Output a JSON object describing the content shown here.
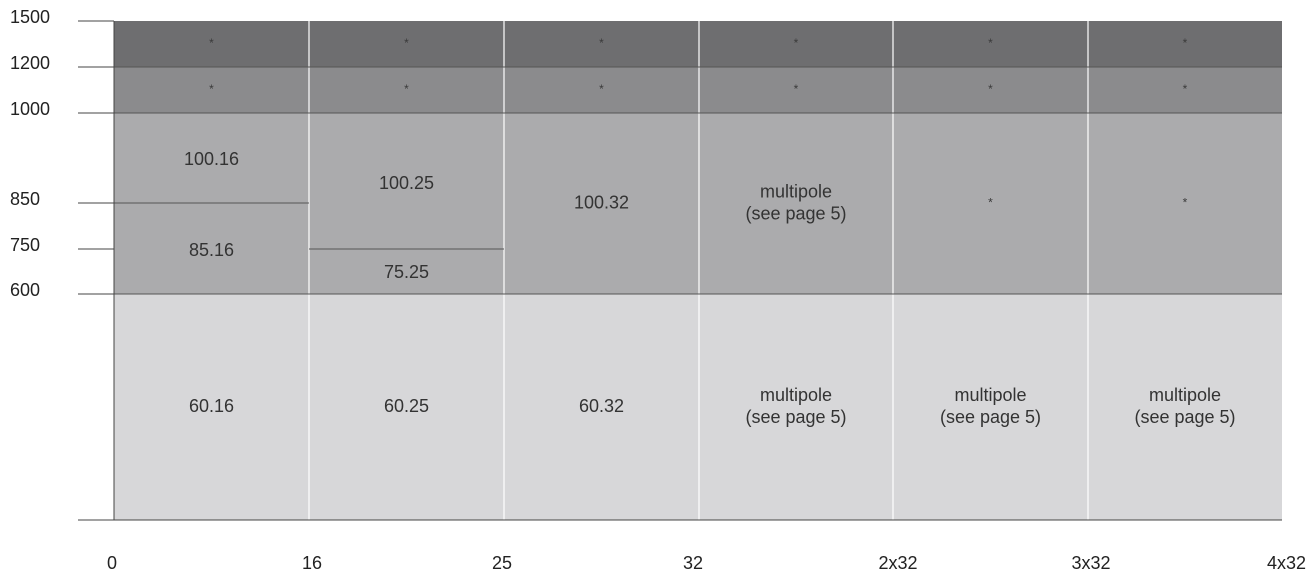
{
  "chart_data": {
    "type": "table",
    "title": "",
    "xlabel": "",
    "ylabel": "",
    "y_ticks": [
      "1500",
      "1200",
      "1000",
      "850",
      "750",
      "600"
    ],
    "x_ticks": [
      "0",
      "16",
      "25",
      "32",
      "2x32",
      "3x32",
      "4x32"
    ],
    "bands": [
      {
        "from": 1200,
        "to": 1500,
        "color": "#6e6e70"
      },
      {
        "from": 1000,
        "to": 1200,
        "color": "#8b8b8d"
      },
      {
        "from": 600,
        "to": 1000,
        "color": "#ababad"
      },
      {
        "from": 0,
        "to": 600,
        "color": "#d7d7d9"
      }
    ],
    "columns": [
      {
        "from": "0",
        "to": "16",
        "cells": [
          {
            "from": 1200,
            "to": 1500,
            "label": "*"
          },
          {
            "from": 1000,
            "to": 1200,
            "label": "*"
          },
          {
            "from": 850,
            "to": 1000,
            "label": "100.16"
          },
          {
            "from": 600,
            "to": 850,
            "label": "85.16"
          },
          {
            "from": 0,
            "to": 600,
            "label": "60.16"
          }
        ]
      },
      {
        "from": "16",
        "to": "25",
        "cells": [
          {
            "from": 1200,
            "to": 1500,
            "label": "*"
          },
          {
            "from": 1000,
            "to": 1200,
            "label": "*"
          },
          {
            "from": 750,
            "to": 1000,
            "label": "100.25"
          },
          {
            "from": 600,
            "to": 750,
            "label": "75.25"
          },
          {
            "from": 0,
            "to": 600,
            "label": "60.25"
          }
        ]
      },
      {
        "from": "25",
        "to": "32",
        "cells": [
          {
            "from": 1200,
            "to": 1500,
            "label": "*"
          },
          {
            "from": 1000,
            "to": 1200,
            "label": "*"
          },
          {
            "from": 600,
            "to": 1000,
            "label": "100.32"
          },
          {
            "from": 0,
            "to": 600,
            "label": "60.32"
          }
        ]
      },
      {
        "from": "32",
        "to": "2x32",
        "cells": [
          {
            "from": 1200,
            "to": 1500,
            "label": "*"
          },
          {
            "from": 1000,
            "to": 1200,
            "label": "*"
          },
          {
            "from": 600,
            "to": 1000,
            "label": "multipole\n(see page 5)"
          },
          {
            "from": 0,
            "to": 600,
            "label": "multipole\n(see page 5)"
          }
        ]
      },
      {
        "from": "2x32",
        "to": "3x32",
        "cells": [
          {
            "from": 1200,
            "to": 1500,
            "label": "*"
          },
          {
            "from": 1000,
            "to": 1200,
            "label": "*"
          },
          {
            "from": 600,
            "to": 1000,
            "label": "*"
          },
          {
            "from": 0,
            "to": 600,
            "label": "multipole\n(see page 5)"
          }
        ]
      },
      {
        "from": "3x32",
        "to": "4x32",
        "cells": [
          {
            "from": 1200,
            "to": 1500,
            "label": "*"
          },
          {
            "from": 1000,
            "to": 1200,
            "label": "*"
          },
          {
            "from": 600,
            "to": 1000,
            "label": "*"
          },
          {
            "from": 0,
            "to": 600,
            "label": "multipole\n(see page 5)"
          }
        ]
      }
    ],
    "colors": {
      "divider_light": "#ffffff",
      "divider_dark": "#555555",
      "axis_line": "#444444",
      "label_text": "#222222",
      "cell_text": "#333333"
    }
  }
}
